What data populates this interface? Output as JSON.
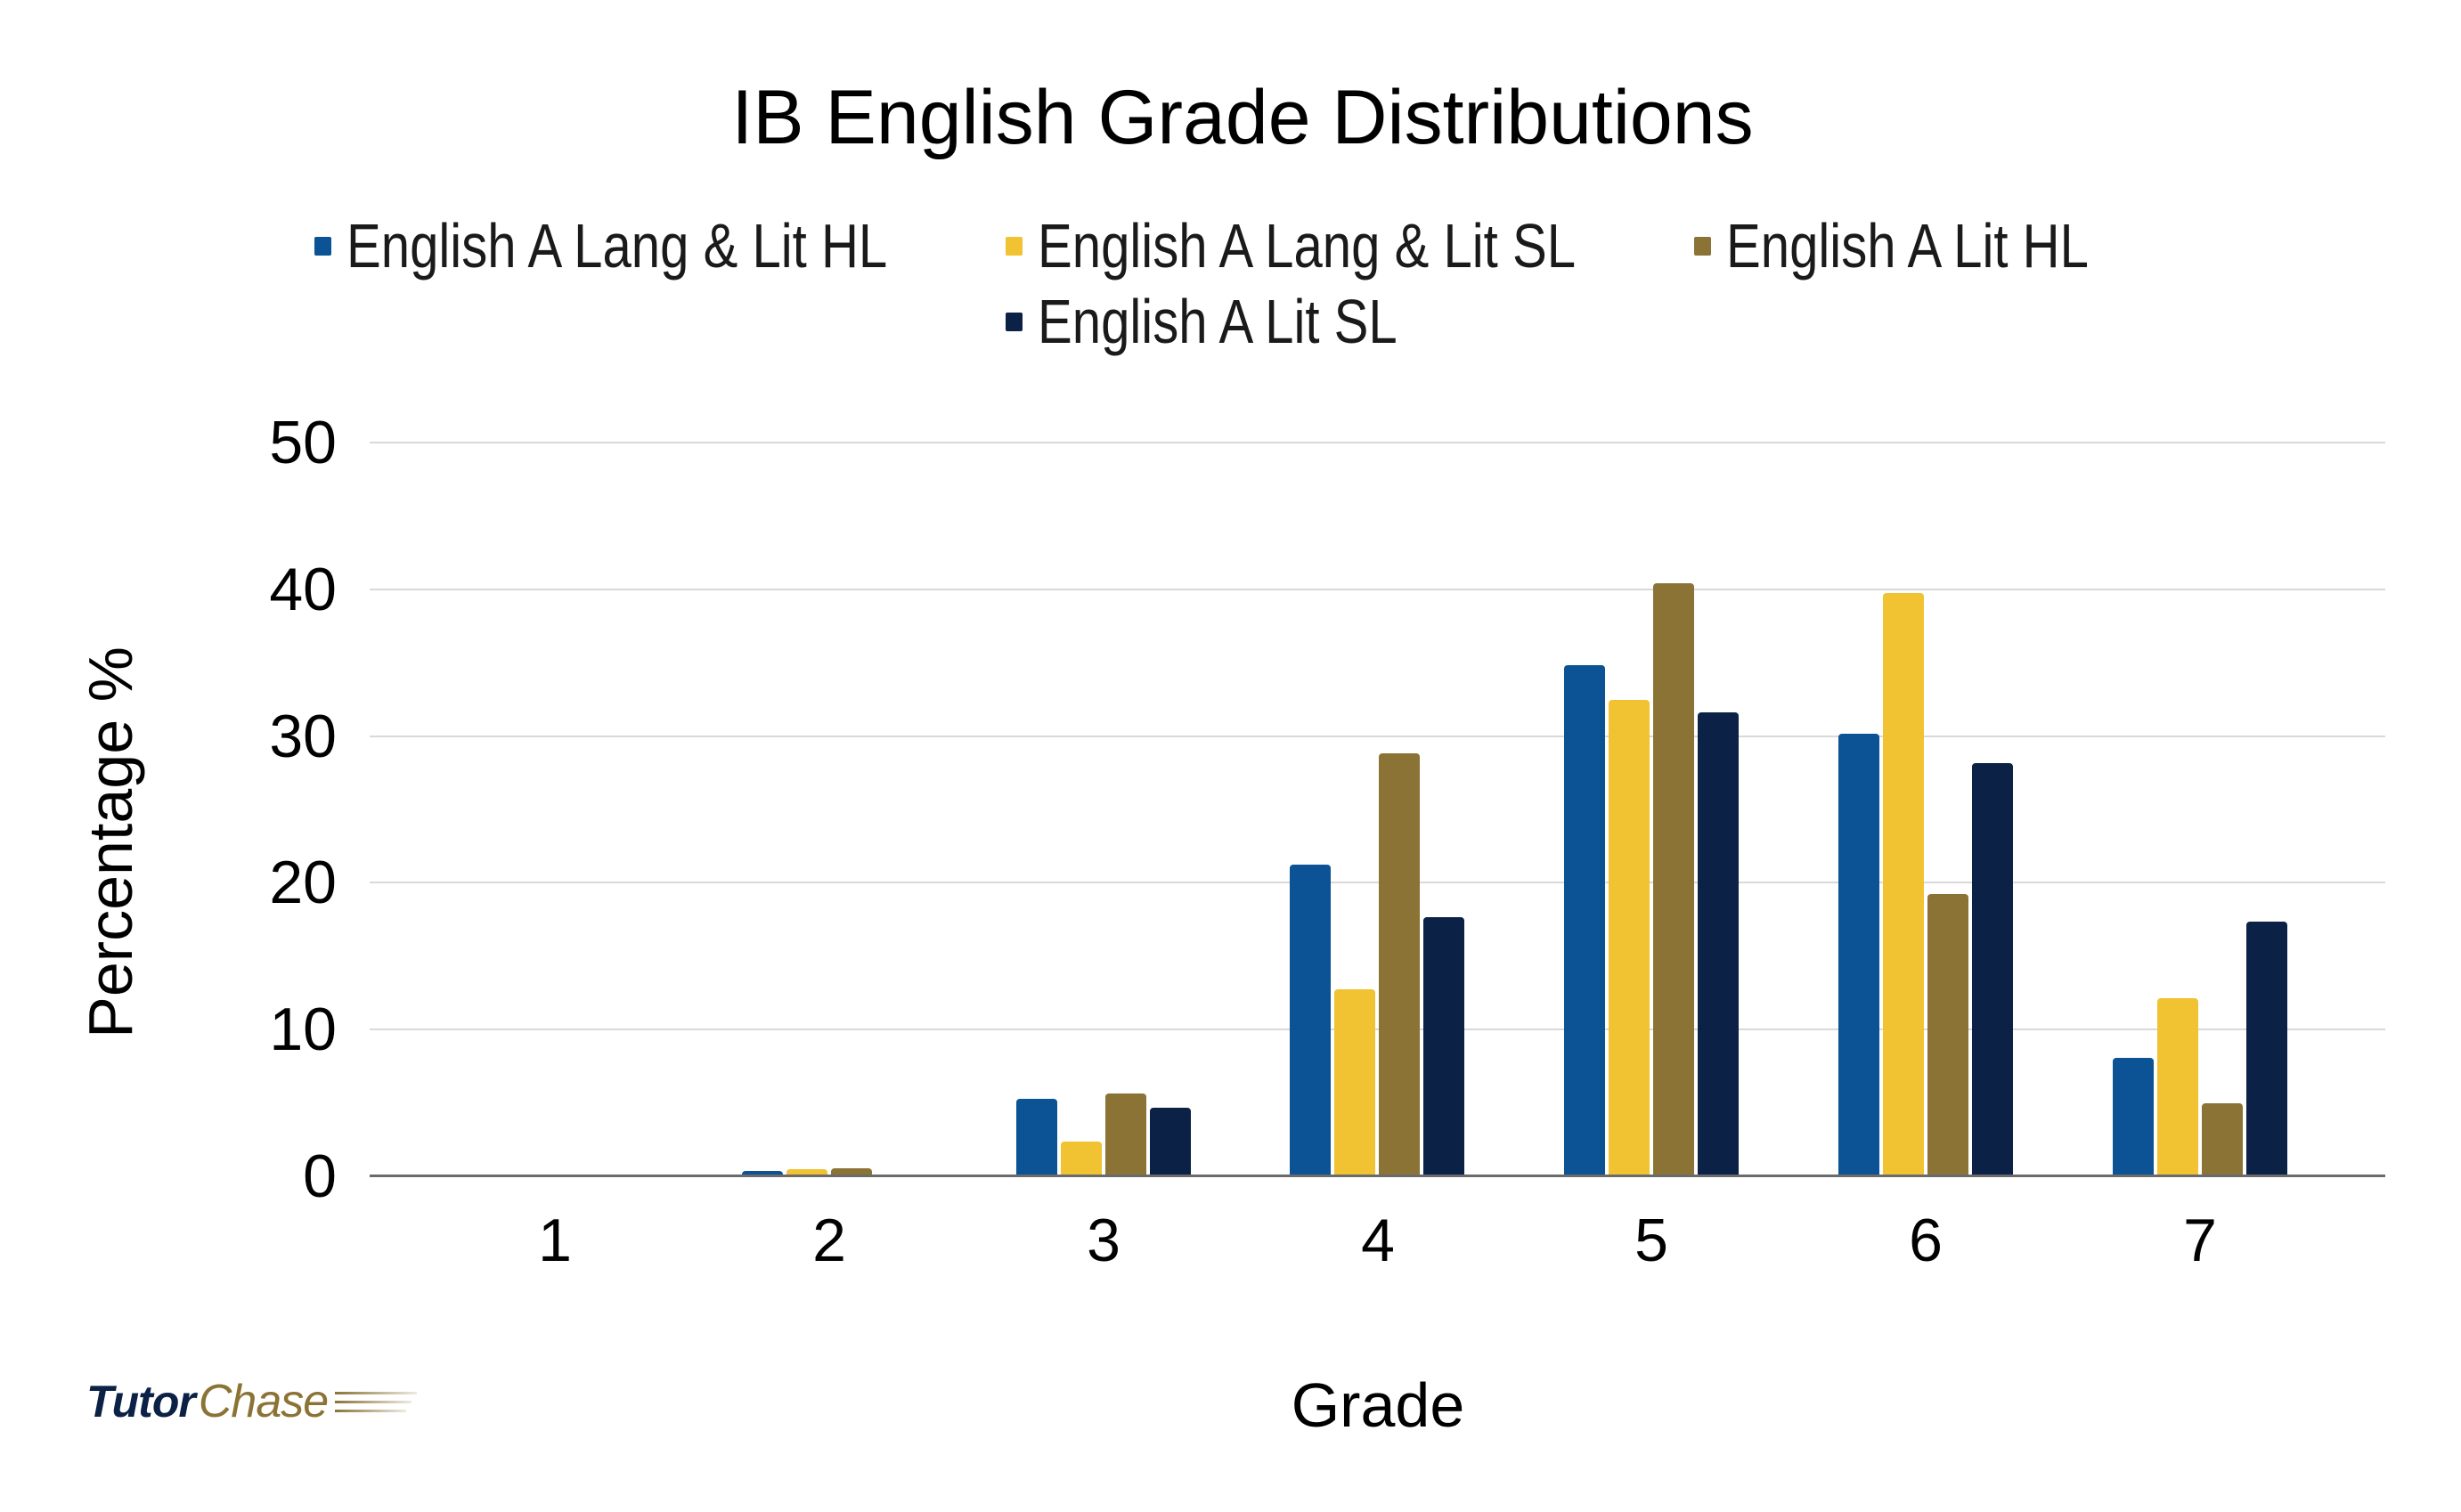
{
  "chart_data": {
    "type": "bar",
    "title": "IB English Grade Distributions",
    "xlabel": "Grade",
    "ylabel": "Percentage %",
    "categories": [
      "1",
      "2",
      "3",
      "4",
      "5",
      "6",
      "7"
    ],
    "ylim": [
      0,
      50
    ],
    "yticks": [
      "0",
      "10",
      "20",
      "30",
      "40",
      "50"
    ],
    "grid": true,
    "legend_position": "top",
    "series": [
      {
        "name": "English A Lang & Lit HL",
        "color": "#0b5394",
        "values": [
          0,
          0.3,
          5.2,
          21.2,
          34.8,
          30.1,
          8.0
        ]
      },
      {
        "name": "English A Lang & Lit SL",
        "color": "#f1c232",
        "values": [
          0,
          0.4,
          2.3,
          12.7,
          32.4,
          39.7,
          12.1
        ]
      },
      {
        "name": "English A Lit HL",
        "color": "#8b7336",
        "values": [
          0,
          0.5,
          5.6,
          28.8,
          40.4,
          19.2,
          4.9
        ]
      },
      {
        "name": "English A Lit SL",
        "color": "#0b2145",
        "values": [
          0,
          0,
          4.6,
          17.6,
          31.6,
          28.1,
          17.3
        ]
      }
    ]
  },
  "branding": {
    "logo_part1": "Tutor",
    "logo_part2": "Chase"
  }
}
